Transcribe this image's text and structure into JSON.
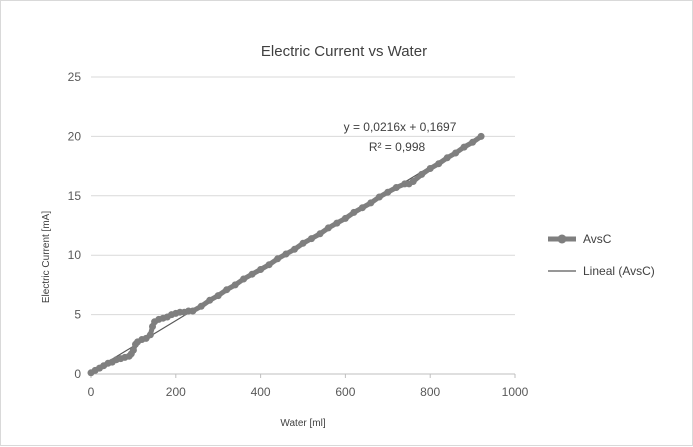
{
  "chart_data": {
    "type": "scatter",
    "title": "Electric Current vs Water",
    "xlabel": "Water [ml]",
    "ylabel": "Electric Current [mA]",
    "xlim": [
      0,
      1000
    ],
    "ylim": [
      0,
      25
    ],
    "xticks": [
      0,
      200,
      400,
      600,
      800,
      1000
    ],
    "yticks": [
      0,
      5,
      10,
      15,
      20,
      25
    ],
    "grid": "horizontal",
    "legend_position": "right",
    "series": [
      {
        "name": "AvsC",
        "color": "#7f7f7f",
        "x": [
          0,
          10,
          20,
          30,
          40,
          50,
          60,
          70,
          80,
          90,
          95,
          100,
          105,
          110,
          120,
          130,
          140,
          145,
          150,
          160,
          170,
          180,
          190,
          200,
          210,
          220,
          230,
          240,
          260,
          280,
          300,
          320,
          340,
          360,
          380,
          400,
          420,
          440,
          460,
          480,
          500,
          520,
          540,
          560,
          580,
          600,
          620,
          640,
          660,
          680,
          700,
          720,
          740,
          750,
          760,
          780,
          800,
          820,
          840,
          860,
          880,
          900,
          920
        ],
        "y": [
          0.1,
          0.3,
          0.5,
          0.7,
          0.9,
          1.0,
          1.2,
          1.3,
          1.4,
          1.5,
          1.7,
          2.0,
          2.5,
          2.7,
          2.9,
          3.0,
          3.3,
          4.0,
          4.4,
          4.6,
          4.7,
          4.8,
          5.0,
          5.1,
          5.2,
          5.2,
          5.3,
          5.3,
          5.7,
          6.2,
          6.6,
          7.1,
          7.5,
          8.0,
          8.4,
          8.8,
          9.2,
          9.7,
          10.1,
          10.5,
          11.0,
          11.4,
          11.8,
          12.3,
          12.7,
          13.1,
          13.6,
          14.0,
          14.4,
          14.9,
          15.3,
          15.7,
          16.0,
          16.0,
          16.2,
          16.8,
          17.3,
          17.7,
          18.2,
          18.6,
          19.1,
          19.5,
          20.0
        ]
      },
      {
        "name": "Lineal (AvsC)",
        "color": "#595959",
        "type": "trendline",
        "slope": 0.0216,
        "intercept": 0.1697,
        "x_range": [
          0,
          920
        ]
      }
    ],
    "annotations": {
      "equation": "y = 0,0216x + 0,1697",
      "r_squared": "R² = 0,998"
    }
  }
}
